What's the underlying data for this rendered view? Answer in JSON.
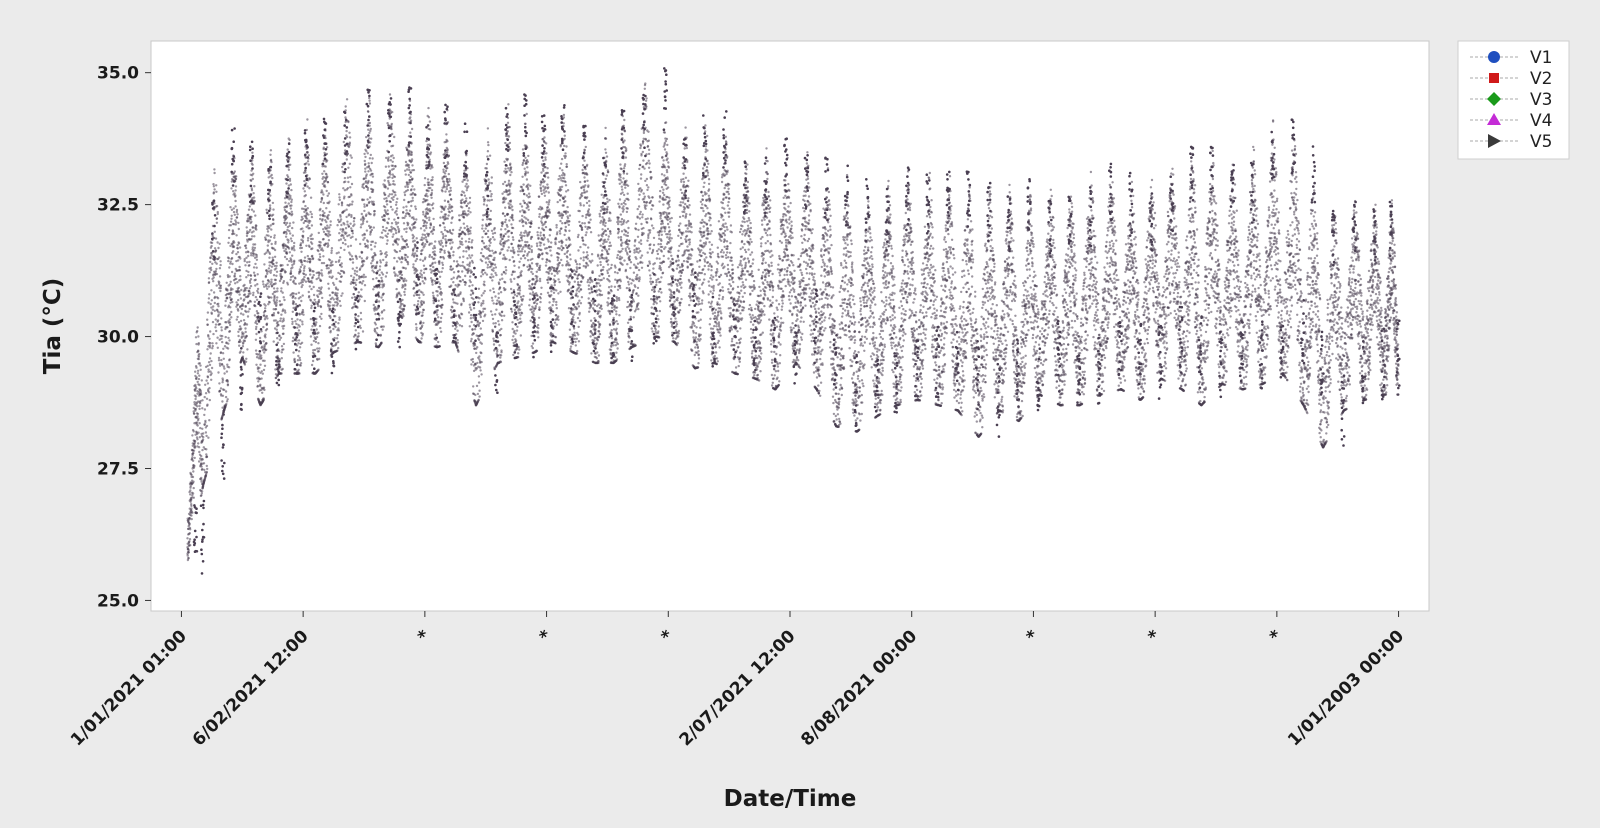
{
  "chart_data": {
    "type": "scatter",
    "title": "",
    "xlabel": "Date/Time",
    "ylabel": "Tia (°C)",
    "ylim": [
      24.8,
      35.6
    ],
    "yticks": [
      25.0,
      27.5,
      30.0,
      32.5,
      35.0
    ],
    "ytick_labels": [
      "25.0",
      "27.5",
      "30.0",
      "32.5",
      "35.0"
    ],
    "xticks": [
      {
        "index": 0,
        "label": "1/01/2021 01:00"
      },
      {
        "index": 1,
        "label": "6/02/2021 12:00"
      },
      {
        "index": 2,
        "label": "*"
      },
      {
        "index": 3,
        "label": "*"
      },
      {
        "index": 4,
        "label": "*"
      },
      {
        "index": 5,
        "label": "2/07/2021 12:00"
      },
      {
        "index": 6,
        "label": "8/08/2021 00:00"
      },
      {
        "index": 7,
        "label": "*"
      },
      {
        "index": 8,
        "label": "*"
      },
      {
        "index": 9,
        "label": "*"
      },
      {
        "index": 10,
        "label": "1/01/2003 00:00"
      }
    ],
    "x_range": [
      -0.25,
      10.25
    ],
    "grid": false,
    "legend_position": "top-right outside",
    "point_color": "#4a3f52",
    "series": [
      {
        "name": "V1",
        "marker": "circle",
        "color": "#1f4fbf"
      },
      {
        "name": "V2",
        "marker": "square",
        "color": "#d01a1a"
      },
      {
        "name": "V3",
        "marker": "diamond",
        "color": "#1a9a1a"
      },
      {
        "name": "V4",
        "marker": "triangle-up",
        "color": "#c42bd6"
      },
      {
        "name": "V5",
        "marker": "triangle-right",
        "color": "#3a3a3a"
      }
    ],
    "daily_cycles": {
      "x": [
        0.05,
        0.18,
        0.35,
        0.5,
        0.65,
        0.8,
        0.95,
        1.1,
        1.25,
        1.45,
        1.62,
        1.8,
        1.95,
        2.1,
        2.25,
        2.42,
        2.6,
        2.75,
        2.9,
        3.05,
        3.22,
        3.4,
        3.55,
        3.7,
        3.9,
        4.05,
        4.22,
        4.38,
        4.55,
        4.72,
        4.88,
        5.05,
        5.22,
        5.38,
        5.55,
        5.72,
        5.88,
        6.05,
        6.22,
        6.38,
        6.55,
        6.72,
        6.88,
        7.05,
        7.22,
        7.38,
        7.55,
        7.72,
        7.88,
        8.05,
        8.22,
        8.38,
        8.55,
        8.72,
        8.88,
        9.05,
        9.22,
        9.38,
        9.55,
        9.72,
        9.88,
        10.0
      ],
      "max": [
        27.0,
        32.6,
        34.0,
        33.7,
        33.4,
        33.8,
        34.0,
        34.2,
        34.3,
        34.7,
        34.6,
        34.8,
        34.3,
        34.4,
        34.2,
        33.4,
        34.4,
        34.6,
        34.2,
        34.5,
        34.2,
        33.5,
        34.3,
        34.6,
        35.1,
        33.8,
        34.2,
        34.3,
        33.5,
        33.4,
        33.8,
        33.6,
        33.4,
        33.3,
        33.0,
        32.8,
        33.2,
        33.1,
        33.3,
        33.2,
        33.0,
        32.8,
        33.0,
        32.7,
        32.9,
        32.9,
        33.3,
        33.1,
        32.8,
        33.1,
        33.6,
        33.7,
        33.4,
        33.3,
        34.1,
        34.2,
        33.7,
        32.5,
        32.6,
        32.6,
        32.6,
        32.6
      ],
      "min": [
        25.5,
        27.2,
        28.6,
        29.6,
        28.7,
        29.3,
        29.3,
        29.3,
        29.7,
        29.9,
        29.8,
        30.4,
        29.9,
        29.8,
        29.9,
        28.7,
        29.5,
        29.6,
        29.7,
        29.9,
        29.7,
        29.5,
        29.5,
        29.8,
        30.0,
        29.9,
        29.4,
        29.5,
        29.3,
        29.2,
        29.0,
        29.5,
        29.0,
        28.3,
        28.2,
        28.5,
        28.7,
        28.8,
        28.7,
        28.6,
        28.1,
        28.6,
        28.4,
        28.9,
        28.7,
        28.7,
        28.9,
        29.0,
        28.8,
        29.2,
        29.0,
        28.7,
        29.1,
        29.0,
        29.1,
        29.3,
        28.7,
        27.9,
        28.6,
        28.8,
        28.9,
        28.9
      ]
    }
  }
}
